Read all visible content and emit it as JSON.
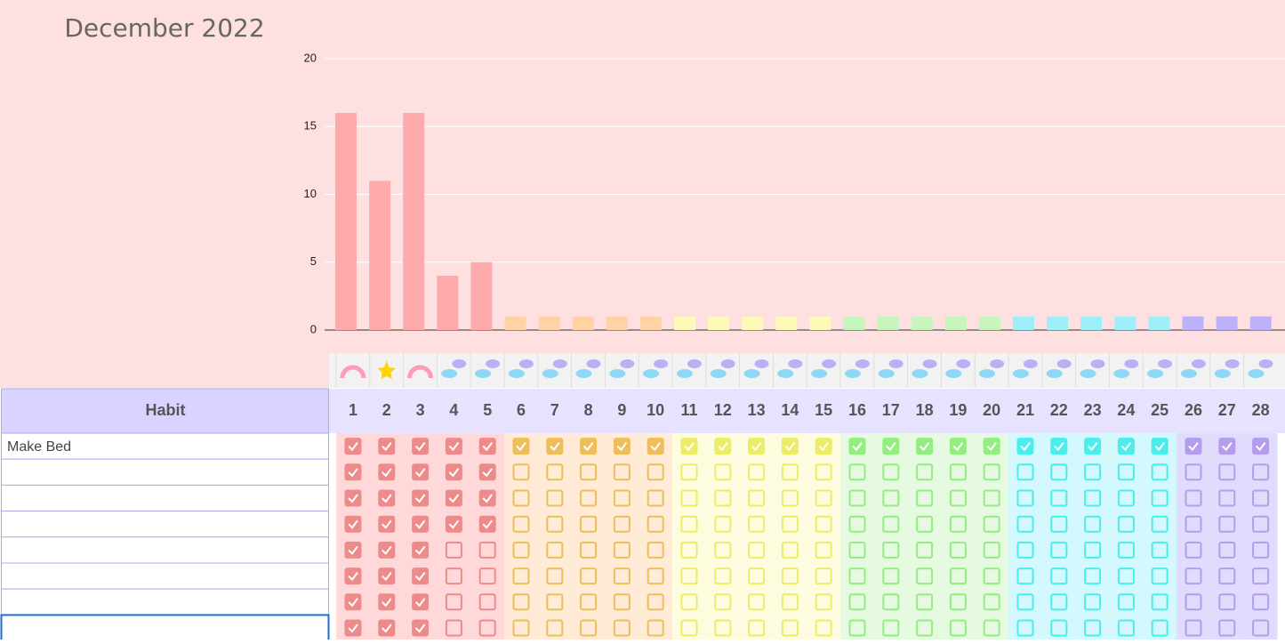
{
  "chart_data": {
    "type": "bar",
    "title": "December 2022",
    "categories": [
      "1",
      "2",
      "3",
      "4",
      "5",
      "6",
      "7",
      "8",
      "9",
      "10",
      "11",
      "12",
      "13",
      "14",
      "15",
      "16",
      "17",
      "18",
      "19",
      "20",
      "21",
      "22",
      "23",
      "24",
      "25",
      "26",
      "27",
      "28"
    ],
    "values": [
      16,
      11,
      16,
      4,
      5,
      1,
      1,
      1,
      1,
      1,
      1,
      1,
      1,
      1,
      1,
      1,
      1,
      1,
      1,
      1,
      1,
      1,
      1,
      1,
      1,
      1,
      1,
      1
    ],
    "colors": [
      "#ffaaaa",
      "#ffaaaa",
      "#ffaaaa",
      "#ffaaaa",
      "#ffaaaa",
      "#ffd3a3",
      "#ffd3a3",
      "#ffd3a3",
      "#ffd3a3",
      "#ffd3a3",
      "#fdf9b8",
      "#fdf9b8",
      "#fdf9b8",
      "#fdf9b8",
      "#fdf9b8",
      "#c6f5bd",
      "#c6f5bd",
      "#c6f5bd",
      "#c6f5bd",
      "#c6f5bd",
      "#9eeffa",
      "#9eeffa",
      "#9eeffa",
      "#9eeffa",
      "#9eeffa",
      "#bdb2fa",
      "#bdb2fa",
      "#bdb2fa"
    ],
    "ylim": [
      0,
      24
    ],
    "yticks": [
      0,
      5,
      10,
      15,
      20
    ],
    "grid": true
  },
  "table": {
    "header": "Habit",
    "rows": [
      {
        "habit": "Make Bed",
        "checks": [
          true,
          true,
          true,
          true,
          true,
          true,
          true,
          true,
          true,
          true,
          true,
          true,
          true,
          true,
          true,
          true,
          true,
          true,
          true,
          true,
          true,
          true,
          true,
          true,
          true,
          true,
          true,
          true
        ]
      },
      {
        "checks": [
          true,
          true,
          true,
          true,
          true,
          false,
          false,
          false,
          false,
          false,
          false,
          false,
          false,
          false,
          false,
          false,
          false,
          false,
          false,
          false,
          false,
          false,
          false,
          false,
          false,
          false,
          false,
          false
        ]
      },
      {
        "checks": [
          true,
          true,
          true,
          true,
          true,
          false,
          false,
          false,
          false,
          false,
          false,
          false,
          false,
          false,
          false,
          false,
          false,
          false,
          false,
          false,
          false,
          false,
          false,
          false,
          false,
          false,
          false,
          false
        ]
      },
      {
        "checks": [
          true,
          true,
          true,
          true,
          true,
          false,
          false,
          false,
          false,
          false,
          false,
          false,
          false,
          false,
          false,
          false,
          false,
          false,
          false,
          false,
          false,
          false,
          false,
          false,
          false,
          false,
          false,
          false
        ]
      },
      {
        "checks": [
          true,
          true,
          true,
          false,
          false,
          false,
          false,
          false,
          false,
          false,
          false,
          false,
          false,
          false,
          false,
          false,
          false,
          false,
          false,
          false,
          false,
          false,
          false,
          false,
          false,
          false,
          false,
          false
        ]
      },
      {
        "checks": [
          true,
          true,
          true,
          false,
          false,
          false,
          false,
          false,
          false,
          false,
          false,
          false,
          false,
          false,
          false,
          false,
          false,
          false,
          false,
          false,
          false,
          false,
          false,
          false,
          false,
          false,
          false,
          false
        ]
      },
      {
        "checks": [
          true,
          true,
          true,
          false,
          false,
          false,
          false,
          false,
          false,
          false,
          false,
          false,
          false,
          false,
          false,
          false,
          false,
          false,
          false,
          false,
          false,
          false,
          false,
          false,
          false,
          false,
          false,
          false
        ]
      },
      {
        "checks": [
          true,
          true,
          true,
          false,
          false,
          false,
          false,
          false,
          false,
          false,
          false,
          false,
          false,
          false,
          false,
          false,
          false,
          false,
          false,
          false,
          false,
          false,
          false,
          false,
          false,
          false,
          false,
          false
        ]
      }
    ]
  }
}
